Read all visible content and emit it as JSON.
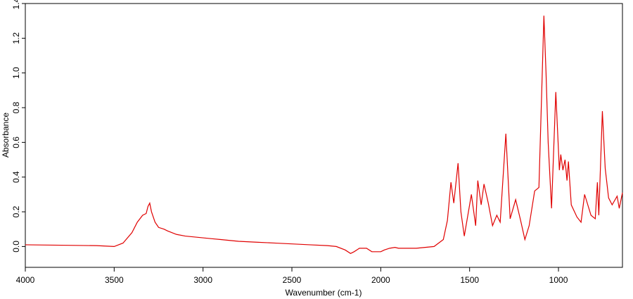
{
  "chart_data": {
    "type": "line",
    "xlabel": "Wavenumber (cm-1)",
    "ylabel": "Absorbance",
    "x": [
      4000,
      3600,
      3500,
      3450,
      3400,
      3370,
      3340,
      3320,
      3310,
      3300,
      3290,
      3270,
      3250,
      3220,
      3200,
      3150,
      3100,
      3000,
      2950,
      2900,
      2800,
      2700,
      2600,
      2500,
      2400,
      2300,
      2250,
      2200,
      2170,
      2150,
      2120,
      2080,
      2050,
      2000,
      1980,
      1950,
      1920,
      1900,
      1800,
      1700,
      1648,
      1625,
      1605,
      1589,
      1565,
      1549,
      1530,
      1490,
      1466,
      1454,
      1435,
      1419,
      1395,
      1371,
      1347,
      1328,
      1296,
      1272,
      1241,
      1213,
      1189,
      1165,
      1134,
      1110,
      1094,
      1082,
      1070,
      1058,
      1039,
      1015,
      995,
      987,
      975,
      963,
      952,
      944,
      928,
      896,
      873,
      853,
      817,
      793,
      781,
      773,
      753,
      737,
      718,
      698,
      670,
      658,
      640
    ],
    "series": [
      {
        "color": "#e00000",
        "values": [
          0.01,
          0.005,
          0.0,
          0.02,
          0.08,
          0.14,
          0.18,
          0.19,
          0.23,
          0.25,
          0.2,
          0.14,
          0.11,
          0.1,
          0.09,
          0.07,
          0.06,
          0.05,
          0.045,
          0.04,
          0.03,
          0.025,
          0.02,
          0.015,
          0.01,
          0.005,
          0.0,
          -0.02,
          -0.04,
          -0.03,
          -0.01,
          -0.01,
          -0.03,
          -0.03,
          -0.02,
          -0.01,
          -0.005,
          -0.01,
          -0.01,
          0.0,
          0.04,
          0.15,
          0.37,
          0.25,
          0.48,
          0.2,
          0.06,
          0.3,
          0.12,
          0.38,
          0.24,
          0.36,
          0.25,
          0.12,
          0.18,
          0.14,
          0.65,
          0.16,
          0.27,
          0.15,
          0.04,
          0.12,
          0.32,
          0.34,
          0.9,
          1.33,
          1.0,
          0.6,
          0.22,
          0.89,
          0.44,
          0.53,
          0.44,
          0.5,
          0.38,
          0.49,
          0.24,
          0.17,
          0.14,
          0.3,
          0.18,
          0.16,
          0.37,
          0.18,
          0.78,
          0.45,
          0.28,
          0.24,
          0.29,
          0.22,
          0.31
        ]
      }
    ],
    "xlim": [
      4000,
      640
    ],
    "xticks": [
      4000,
      3500,
      3000,
      2500,
      2000,
      1500,
      1000
    ],
    "ylim": [
      -0.12,
      1.4
    ],
    "yticks": [
      0.0,
      0.2,
      0.4,
      0.6,
      0.8,
      1.0,
      1.2,
      1.4
    ]
  }
}
